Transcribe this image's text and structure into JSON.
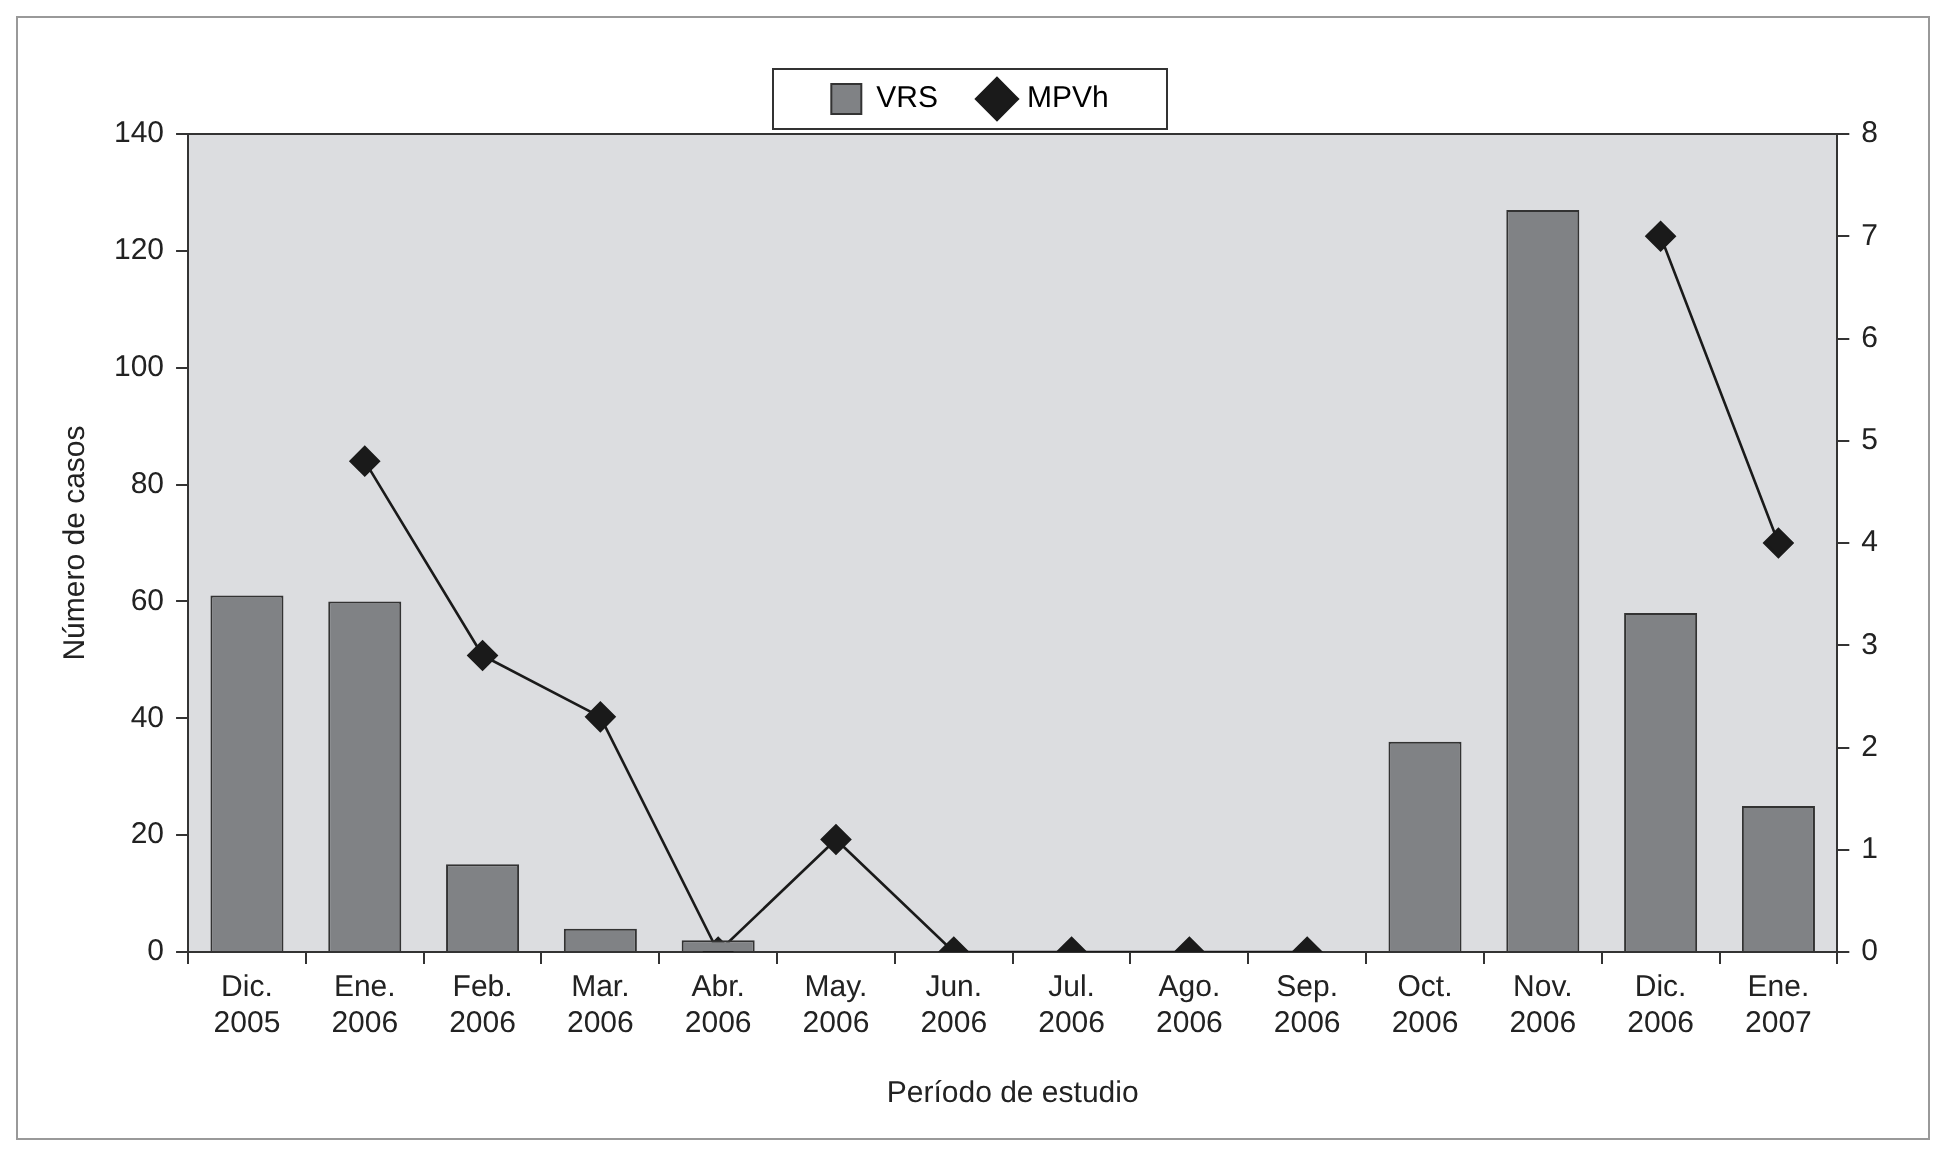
{
  "chart_data": {
    "type": "bar",
    "xlabel": "Período de estudio",
    "ylabel": "Número de casos",
    "categories": [
      "Dic. 2005",
      "Ene. 2006",
      "Feb. 2006",
      "Mar. 2006",
      "Abr. 2006",
      "May. 2006",
      "Jun. 2006",
      "Jul. 2006",
      "Ago. 2006",
      "Sep. 2006",
      "Oct. 2006",
      "Nov. 2006",
      "Dic. 2006",
      "Ene. 2007"
    ],
    "series": [
      {
        "name": "VRS",
        "color": "#808285",
        "values": [
          61,
          60,
          15,
          4,
          2,
          0,
          0,
          0,
          0,
          0,
          36,
          127,
          58,
          25
        ]
      },
      {
        "name": "MPVh",
        "type": "line",
        "axis": "y2",
        "color": "#1a1a1a",
        "marker": "diamond",
        "values": [
          null,
          4.8,
          2.9,
          2.3,
          0,
          1.1,
          0,
          0,
          0,
          0,
          null,
          null,
          7,
          4
        ]
      }
    ],
    "ylim": [
      0,
      140
    ],
    "yticks": [
      0,
      20,
      40,
      60,
      80,
      100,
      120,
      140
    ],
    "y2lim": [
      0,
      8
    ],
    "y2ticks": [
      0,
      1,
      2,
      3,
      4,
      5,
      6,
      7,
      8
    ],
    "grid": false,
    "legend": "top"
  }
}
